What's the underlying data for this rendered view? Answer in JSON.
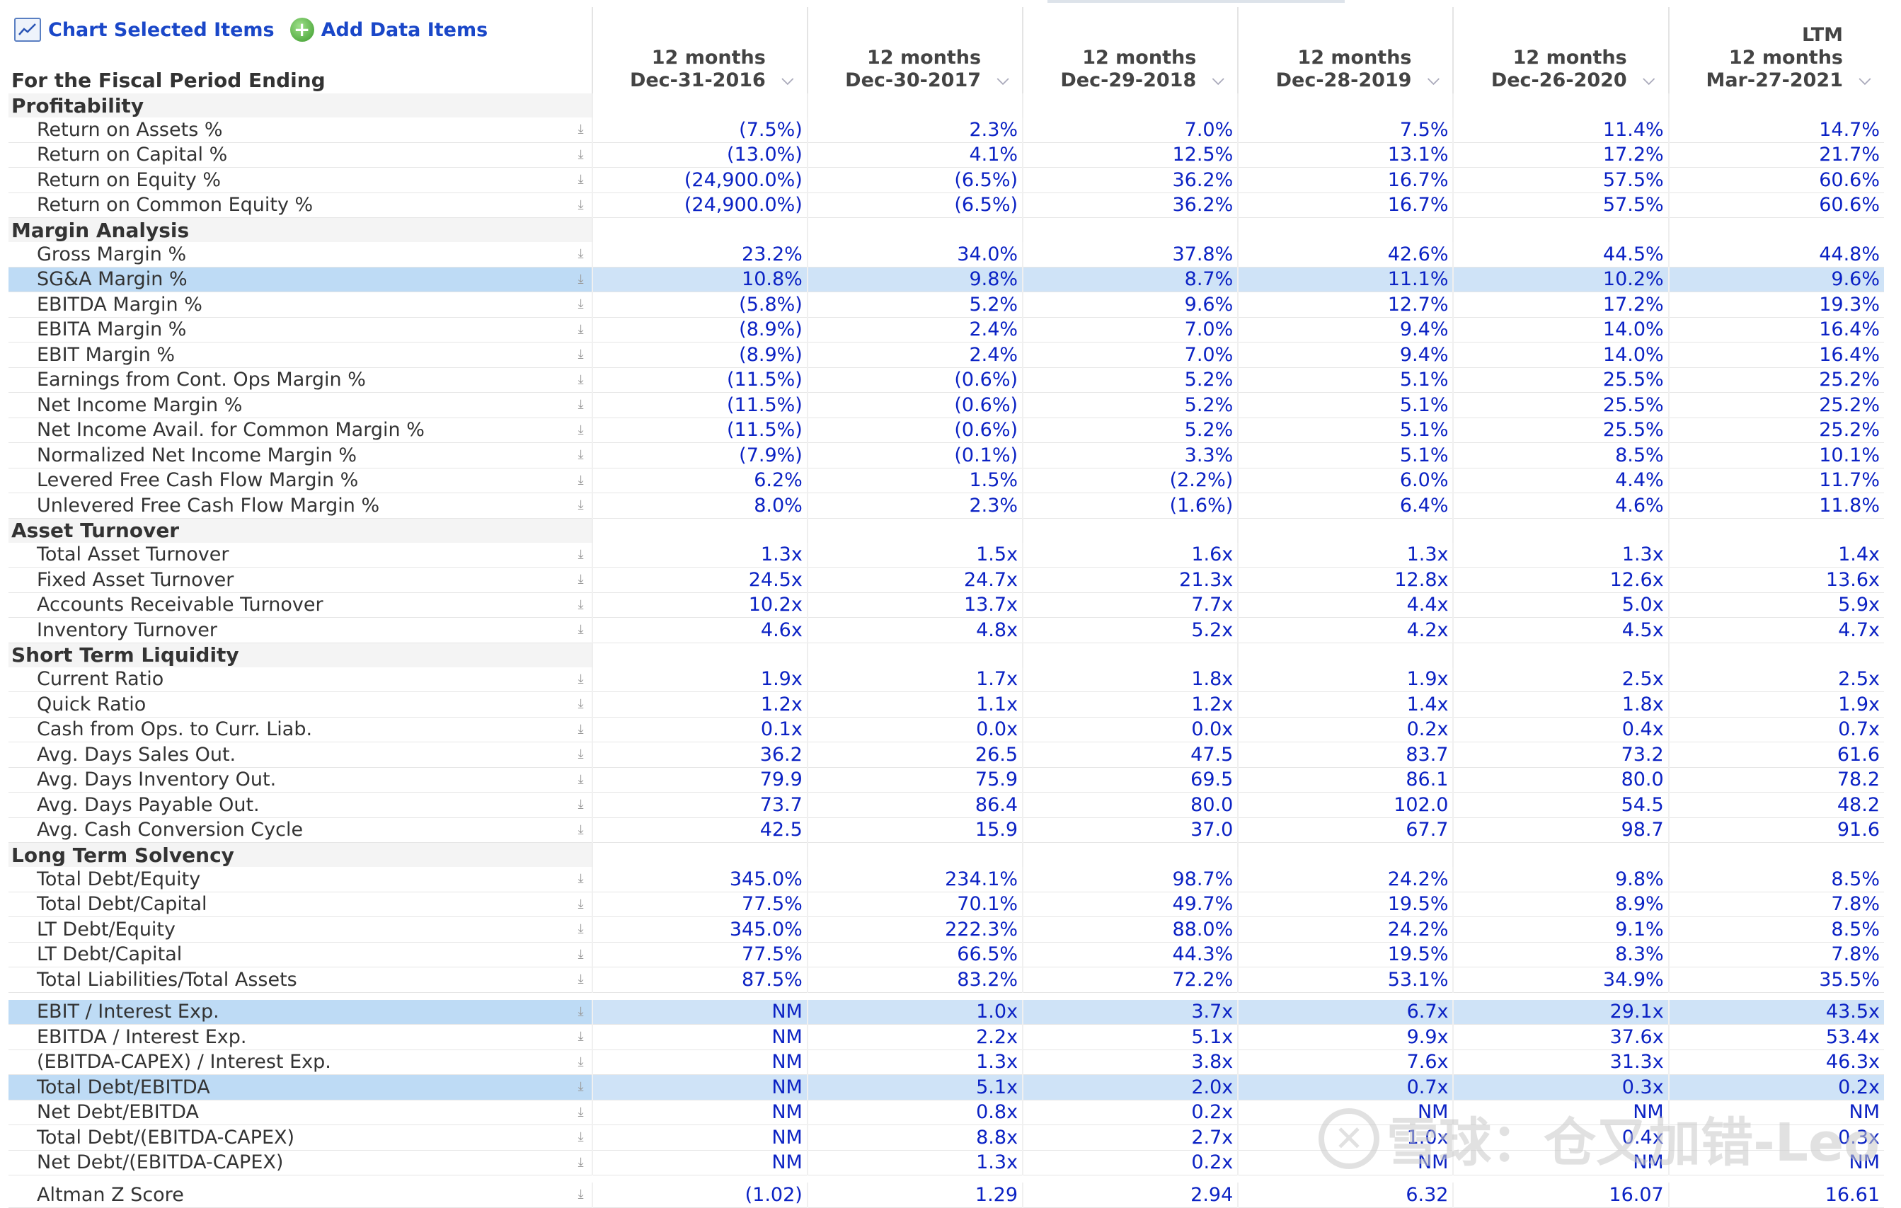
{
  "toolbar": {
    "chart_label": "Chart Selected Items",
    "add_label": "Add Data Items"
  },
  "header": {
    "label": "For the Fiscal Period Ending",
    "columns": [
      {
        "line1": "",
        "line2": "12 months",
        "line3": "Dec-31-2016"
      },
      {
        "line1": "",
        "line2": "12 months",
        "line3": "Dec-30-2017"
      },
      {
        "line1": "",
        "line2": "12 months",
        "line3": "Dec-29-2018"
      },
      {
        "line1": "",
        "line2": "12 months",
        "line3": "Dec-28-2019"
      },
      {
        "line1": "",
        "line2": "12 months",
        "line3": "Dec-26-2020"
      },
      {
        "line1": "LTM",
        "line2": "12 months",
        "line3": "Mar-27-2021"
      }
    ]
  },
  "sections": [
    {
      "title": "Profitability",
      "rows": [
        {
          "label": "Return on Assets %",
          "values": [
            "(7.5%)",
            "2.3%",
            "7.0%",
            "7.5%",
            "11.4%",
            "14.7%"
          ],
          "highlighted": false
        },
        {
          "label": "Return on Capital %",
          "values": [
            "(13.0%)",
            "4.1%",
            "12.5%",
            "13.1%",
            "17.2%",
            "21.7%"
          ],
          "highlighted": false
        },
        {
          "label": "Return on Equity %",
          "values": [
            "(24,900.0%)",
            "(6.5%)",
            "36.2%",
            "16.7%",
            "57.5%",
            "60.6%"
          ],
          "highlighted": false
        },
        {
          "label": "Return on Common Equity %",
          "values": [
            "(24,900.0%)",
            "(6.5%)",
            "36.2%",
            "16.7%",
            "57.5%",
            "60.6%"
          ],
          "highlighted": false
        }
      ]
    },
    {
      "title": "Margin Analysis",
      "rows": [
        {
          "label": "Gross Margin %",
          "values": [
            "23.2%",
            "34.0%",
            "37.8%",
            "42.6%",
            "44.5%",
            "44.8%"
          ],
          "highlighted": false
        },
        {
          "label": "SG&A Margin %",
          "values": [
            "10.8%",
            "9.8%",
            "8.7%",
            "11.1%",
            "10.2%",
            "9.6%"
          ],
          "highlighted": true
        },
        {
          "label": "EBITDA Margin %",
          "values": [
            "(5.8%)",
            "5.2%",
            "9.6%",
            "12.7%",
            "17.2%",
            "19.3%"
          ],
          "highlighted": false
        },
        {
          "label": "EBITA Margin %",
          "values": [
            "(8.9%)",
            "2.4%",
            "7.0%",
            "9.4%",
            "14.0%",
            "16.4%"
          ],
          "highlighted": false
        },
        {
          "label": "EBIT Margin %",
          "values": [
            "(8.9%)",
            "2.4%",
            "7.0%",
            "9.4%",
            "14.0%",
            "16.4%"
          ],
          "highlighted": false
        },
        {
          "label": "Earnings from Cont. Ops Margin %",
          "values": [
            "(11.5%)",
            "(0.6%)",
            "5.2%",
            "5.1%",
            "25.5%",
            "25.2%"
          ],
          "highlighted": false
        },
        {
          "label": "Net Income Margin %",
          "values": [
            "(11.5%)",
            "(0.6%)",
            "5.2%",
            "5.1%",
            "25.5%",
            "25.2%"
          ],
          "highlighted": false
        },
        {
          "label": "Net Income Avail. for Common Margin %",
          "values": [
            "(11.5%)",
            "(0.6%)",
            "5.2%",
            "5.1%",
            "25.5%",
            "25.2%"
          ],
          "highlighted": false
        },
        {
          "label": "Normalized Net Income Margin %",
          "values": [
            "(7.9%)",
            "(0.1%)",
            "3.3%",
            "5.1%",
            "8.5%",
            "10.1%"
          ],
          "highlighted": false
        },
        {
          "label": "Levered Free Cash Flow Margin %",
          "values": [
            "6.2%",
            "1.5%",
            "(2.2%)",
            "6.0%",
            "4.4%",
            "11.7%"
          ],
          "highlighted": false
        },
        {
          "label": "Unlevered Free Cash Flow Margin %",
          "values": [
            "8.0%",
            "2.3%",
            "(1.6%)",
            "6.4%",
            "4.6%",
            "11.8%"
          ],
          "highlighted": false
        }
      ]
    },
    {
      "title": "Asset Turnover",
      "rows": [
        {
          "label": "Total Asset Turnover",
          "values": [
            "1.3x",
            "1.5x",
            "1.6x",
            "1.3x",
            "1.3x",
            "1.4x"
          ],
          "highlighted": false
        },
        {
          "label": "Fixed Asset Turnover",
          "values": [
            "24.5x",
            "24.7x",
            "21.3x",
            "12.8x",
            "12.6x",
            "13.6x"
          ],
          "highlighted": false
        },
        {
          "label": "Accounts Receivable Turnover",
          "values": [
            "10.2x",
            "13.7x",
            "7.7x",
            "4.4x",
            "5.0x",
            "5.9x"
          ],
          "highlighted": false
        },
        {
          "label": "Inventory Turnover",
          "values": [
            "4.6x",
            "4.8x",
            "5.2x",
            "4.2x",
            "4.5x",
            "4.7x"
          ],
          "highlighted": false
        }
      ]
    },
    {
      "title": "Short Term Liquidity",
      "rows": [
        {
          "label": "Current Ratio",
          "values": [
            "1.9x",
            "1.7x",
            "1.8x",
            "1.9x",
            "2.5x",
            "2.5x"
          ],
          "highlighted": false
        },
        {
          "label": "Quick Ratio",
          "values": [
            "1.2x",
            "1.1x",
            "1.2x",
            "1.4x",
            "1.8x",
            "1.9x"
          ],
          "highlighted": false
        },
        {
          "label": "Cash from Ops. to Curr. Liab.",
          "values": [
            "0.1x",
            "0.0x",
            "0.0x",
            "0.2x",
            "0.4x",
            "0.7x"
          ],
          "highlighted": false
        },
        {
          "label": "Avg. Days Sales Out.",
          "values": [
            "36.2",
            "26.5",
            "47.5",
            "83.7",
            "73.2",
            "61.6"
          ],
          "highlighted": false
        },
        {
          "label": "Avg. Days Inventory Out.",
          "values": [
            "79.9",
            "75.9",
            "69.5",
            "86.1",
            "80.0",
            "78.2"
          ],
          "highlighted": false
        },
        {
          "label": "Avg. Days Payable Out.",
          "values": [
            "73.7",
            "86.4",
            "80.0",
            "102.0",
            "54.5",
            "48.2"
          ],
          "highlighted": false
        },
        {
          "label": "Avg. Cash Conversion Cycle",
          "values": [
            "42.5",
            "15.9",
            "37.0",
            "67.7",
            "98.7",
            "91.6"
          ],
          "highlighted": false
        }
      ]
    },
    {
      "title": "Long Term Solvency",
      "rows": [
        {
          "label": "Total Debt/Equity",
          "values": [
            "345.0%",
            "234.1%",
            "98.7%",
            "24.2%",
            "9.8%",
            "8.5%"
          ],
          "highlighted": false
        },
        {
          "label": "Total Debt/Capital",
          "values": [
            "77.5%",
            "70.1%",
            "49.7%",
            "19.5%",
            "8.9%",
            "7.8%"
          ],
          "highlighted": false
        },
        {
          "label": "LT Debt/Equity",
          "values": [
            "345.0%",
            "222.3%",
            "88.0%",
            "24.2%",
            "9.1%",
            "8.5%"
          ],
          "highlighted": false
        },
        {
          "label": "LT Debt/Capital",
          "values": [
            "77.5%",
            "66.5%",
            "44.3%",
            "19.5%",
            "8.3%",
            "7.8%"
          ],
          "highlighted": false
        },
        {
          "label": "Total Liabilities/Total Assets",
          "values": [
            "87.5%",
            "83.2%",
            "72.2%",
            "53.1%",
            "34.9%",
            "35.5%"
          ],
          "highlighted": false
        }
      ]
    },
    {
      "title": "",
      "rows": [
        {
          "label": "EBIT / Interest Exp.",
          "values": [
            "NM",
            "1.0x",
            "3.7x",
            "6.7x",
            "29.1x",
            "43.5x"
          ],
          "highlighted": true
        },
        {
          "label": "EBITDA / Interest Exp.",
          "values": [
            "NM",
            "2.2x",
            "5.1x",
            "9.9x",
            "37.6x",
            "53.4x"
          ],
          "highlighted": false
        },
        {
          "label": "(EBITDA-CAPEX) / Interest Exp.",
          "values": [
            "NM",
            "1.3x",
            "3.8x",
            "7.6x",
            "31.3x",
            "46.3x"
          ],
          "highlighted": false
        },
        {
          "label": "Total Debt/EBITDA",
          "values": [
            "NM",
            "5.1x",
            "2.0x",
            "0.7x",
            "0.3x",
            "0.2x"
          ],
          "highlighted": true
        },
        {
          "label": "Net Debt/EBITDA",
          "values": [
            "NM",
            "0.8x",
            "0.2x",
            "NM",
            "NM",
            "NM"
          ],
          "highlighted": false
        },
        {
          "label": "Total Debt/(EBITDA-CAPEX)",
          "values": [
            "NM",
            "8.8x",
            "2.7x",
            "1.0x",
            "0.4x",
            "0.3x"
          ],
          "highlighted": false
        },
        {
          "label": "Net Debt/(EBITDA-CAPEX)",
          "values": [
            "NM",
            "1.3x",
            "0.2x",
            "NM",
            "NM",
            "NM"
          ],
          "highlighted": false
        }
      ]
    },
    {
      "title": "",
      "rows": [
        {
          "label": "Altman Z Score",
          "values": [
            "(1.02)",
            "1.29",
            "2.94",
            "6.32",
            "16.07",
            "16.61"
          ],
          "highlighted": false
        }
      ]
    }
  ],
  "watermark": {
    "text": "雪球：仓又加错-Leo",
    "logo_glyph": "✕"
  },
  "icons": {
    "chart": "chart-icon",
    "add": "plus-circle-icon",
    "row_action": "download-arrow-icon",
    "column_menu": "chevron-down-icon"
  },
  "colors": {
    "link": "#1a47c8",
    "value": "#0b22c4",
    "highlight": "#cfe3f7",
    "section_bg": "#f4f4f4"
  }
}
